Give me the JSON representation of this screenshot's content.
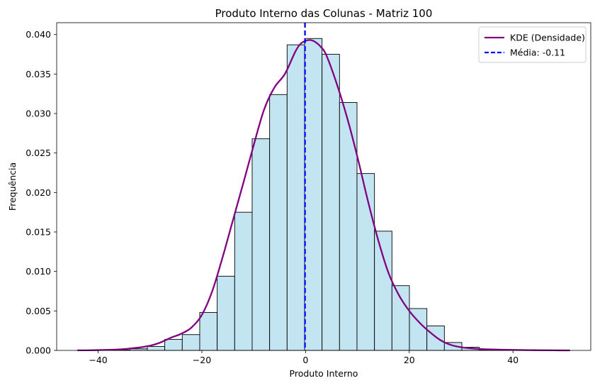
{
  "chart_data": {
    "type": "bar",
    "title": "Produto Interno das Colunas - Matriz 100",
    "xlabel": "Produto Interno",
    "ylabel": "Frequência",
    "xlim": [
      -48.0,
      55.0
    ],
    "ylim": [
      0,
      0.0415
    ],
    "xticks": [
      -40,
      -20,
      0,
      20,
      40
    ],
    "xtick_labels": [
      "−40",
      "−20",
      "0",
      "20",
      "40"
    ],
    "yticks": [
      0.0,
      0.005,
      0.01,
      0.015,
      0.02,
      0.025,
      0.03,
      0.035,
      0.04
    ],
    "ytick_labels": [
      "0.000",
      "0.005",
      "0.010",
      "0.015",
      "0.020",
      "0.025",
      "0.030",
      "0.035",
      "0.040"
    ],
    "grid": false,
    "legend_position": "top-right",
    "histogram": {
      "name": "",
      "bin_edges": [
        -44.0,
        -40.63,
        -37.26,
        -33.89,
        -30.52,
        -27.15,
        -23.78,
        -20.41,
        -17.04,
        -13.67,
        -10.3,
        -6.93,
        -3.56,
        -0.19,
        3.18,
        6.55,
        9.92,
        13.29,
        16.66,
        20.03,
        23.4,
        26.77,
        30.14,
        33.51,
        36.88,
        40.25,
        43.62,
        46.99,
        50.36
      ],
      "densities": [
        0.0,
        0.0,
        5e-05,
        0.0002,
        0.0005,
        0.0014,
        0.002,
        0.0048,
        0.0094,
        0.0175,
        0.0268,
        0.0324,
        0.0387,
        0.0395,
        0.0375,
        0.0314,
        0.0224,
        0.0151,
        0.0082,
        0.0053,
        0.0031,
        0.001,
        0.0004,
        0.0001,
        4e-05,
        2e-05,
        0.0,
        0.0
      ],
      "color": "#c3e5f2",
      "edge_color": "#000000"
    },
    "kde": {
      "name": "KDE (Densidade)",
      "color": "#800080",
      "x": [
        -44,
        -40,
        -36,
        -33,
        -30,
        -28,
        -26,
        -24,
        -22,
        -20,
        -18,
        -16,
        -14,
        -12,
        -10,
        -8,
        -6,
        -4,
        -2,
        -1,
        0,
        1,
        2,
        3,
        4,
        6,
        8,
        10,
        12,
        14,
        16,
        18,
        20,
        22,
        24,
        26,
        28,
        30,
        33,
        36,
        40,
        44,
        48,
        51
      ],
      "y": [
        1e-05,
        4e-05,
        0.00012,
        0.0003,
        0.0006,
        0.001,
        0.0016,
        0.0021,
        0.0029,
        0.0045,
        0.0075,
        0.0118,
        0.0165,
        0.0212,
        0.026,
        0.0305,
        0.0333,
        0.035,
        0.0378,
        0.0388,
        0.0392,
        0.0393,
        0.039,
        0.0384,
        0.0374,
        0.0338,
        0.0295,
        0.0245,
        0.019,
        0.014,
        0.0098,
        0.007,
        0.005,
        0.0035,
        0.0023,
        0.0013,
        0.0007,
        0.0004,
        0.0002,
        0.00012,
        6e-05,
        3e-05,
        1e-05,
        0.0
      ]
    },
    "mean_line": {
      "name": "Média: -0.11",
      "value": -0.11,
      "color": "#0000ff"
    }
  }
}
